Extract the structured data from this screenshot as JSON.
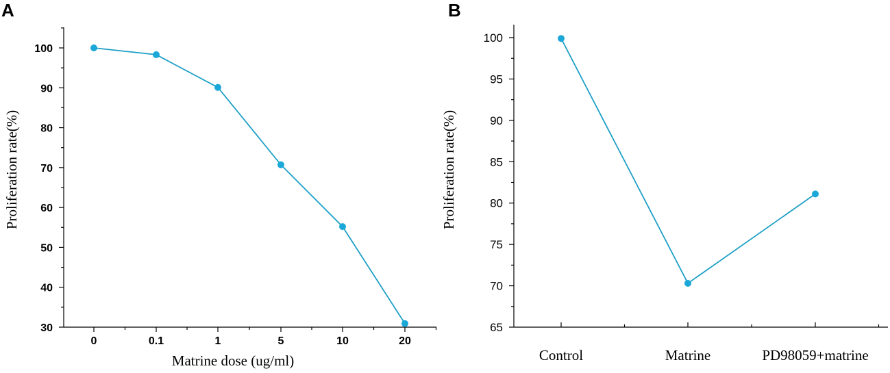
{
  "chart_data": [
    {
      "panel": "A",
      "type": "line",
      "title": "",
      "xlabel": "Matrine dose (ug/ml)",
      "ylabel": "Proliferation rate(%)",
      "categories": [
        "0",
        "0.1",
        "1",
        "5",
        "10",
        "20"
      ],
      "values": [
        100,
        98.3,
        90.1,
        70.7,
        55.2,
        30.9
      ],
      "ylim": [
        30,
        105
      ],
      "yticks": [
        30,
        40,
        50,
        60,
        70,
        80,
        90,
        100
      ],
      "color": "#1ba8d8",
      "line_color": "#1e9fc6"
    },
    {
      "panel": "B",
      "type": "line",
      "title": "",
      "xlabel": "",
      "ylabel": "Proliferation rate(%)",
      "categories": [
        "Control",
        "Matrine",
        "PD98059+matrine"
      ],
      "values": [
        99.9,
        70.3,
        81.1
      ],
      "ylim": [
        65,
        102
      ],
      "yticks": [
        65,
        70,
        75,
        80,
        85,
        90,
        95,
        100
      ],
      "color": "#1ba8d8",
      "line_color": "#1e9fc6"
    }
  ]
}
